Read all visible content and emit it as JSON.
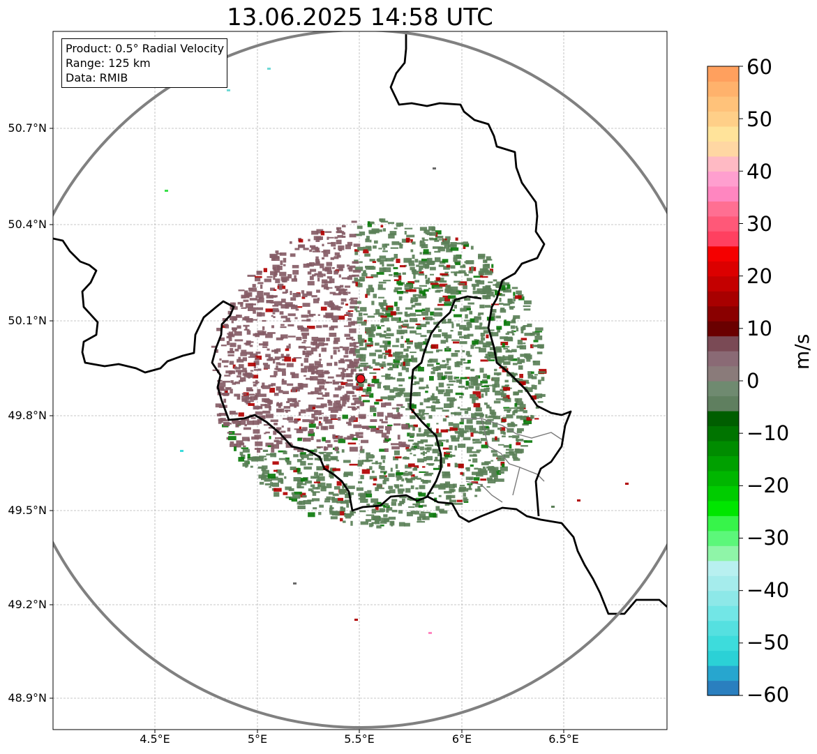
{
  "title": "13.06.2025 14:58 UTC",
  "info_box": {
    "product": "Product: 0.5° Radial Velocity",
    "range": "Range: 125 km",
    "data": "Data: RMIB"
  },
  "map": {
    "lon_range": [
      4.0,
      7.0
    ],
    "lat_range": [
      48.8,
      50.98
    ],
    "lon_ticks": [
      "4.5°E",
      "5°E",
      "5.5°E",
      "6°E",
      "6.5°E"
    ],
    "lat_ticks": [
      "50.7°N",
      "50.4°N",
      "50.1°N",
      "49.8°N",
      "49.5°N",
      "49.2°N",
      "48.9°N"
    ],
    "gridlines": true,
    "radar_site": {
      "lon": 5.505,
      "lat": 49.915,
      "color": "#e8111a"
    },
    "range_ring_km": 125,
    "range_ring_color": "#808080",
    "echo_colors": {
      "receding": "#855c66",
      "approaching": "#5b8058",
      "strong_approaching": "#0b7a0b",
      "strong_receding": "#b10000"
    }
  },
  "colorbar": {
    "label": "m/s",
    "min": -60,
    "max": 60,
    "ticks": [
      "60",
      "50",
      "40",
      "30",
      "20",
      "10",
      "0",
      "−10",
      "−20",
      "−30",
      "−40",
      "−50",
      "−60"
    ],
    "colors_low_to_high": [
      "#2a7fbf",
      "#27a6cf",
      "#2bd1d6",
      "#3ddcdc",
      "#55e0e0",
      "#72e6e6",
      "#8de8e8",
      "#a5ecec",
      "#b8f0f0",
      "#8ff5a8",
      "#5cf77a",
      "#37f44a",
      "#00e600",
      "#00cc00",
      "#00b600",
      "#00a000",
      "#008c00",
      "#007400",
      "#005e00",
      "#5f7f5f",
      "#6f8a70",
      "#8a7b7a",
      "#8a6a75",
      "#7a4a55",
      "#6a0000",
      "#8a0000",
      "#a80000",
      "#c40000",
      "#dc0000",
      "#f50000",
      "#ff4060",
      "#ff5878",
      "#ff6f92",
      "#ff86c0",
      "#ff9fcf",
      "#ffbac4",
      "#ffd7a3",
      "#ffe39a",
      "#ffcf88",
      "#ffc27a",
      "#ffb26c",
      "#ffa05e"
    ]
  }
}
